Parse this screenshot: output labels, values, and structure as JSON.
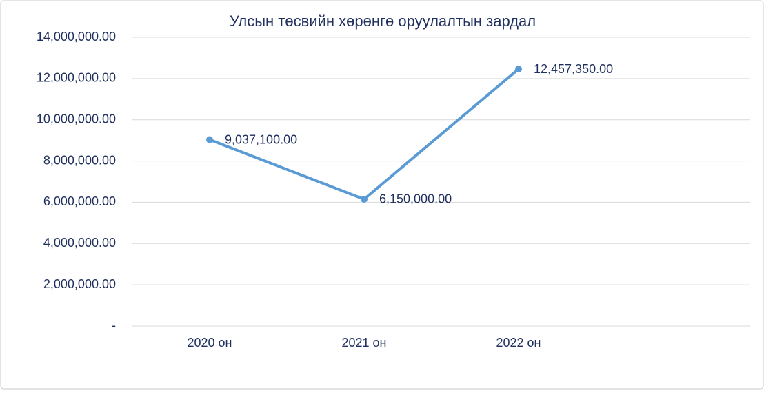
{
  "chart_data": {
    "type": "line",
    "title": "Улсын төсвийн хөрөнгө оруулалтын зардал",
    "categories": [
      "2020 он",
      "2021 он",
      "2022 он",
      null
    ],
    "series": [
      {
        "color": "#5b9bd5",
        "values": [
          9037100,
          6150000,
          12457350,
          null
        ],
        "value_labels": [
          "9,037,100.00",
          "6,150,000.00",
          "12,457,350.00",
          null
        ]
      }
    ],
    "ylim": [
      0,
      14000000
    ],
    "yticks": [
      {
        "value": 0,
        "label": "-"
      },
      {
        "value": 2000000,
        "label": "2,000,000.00"
      },
      {
        "value": 4000000,
        "label": "4,000,000.00"
      },
      {
        "value": 6000000,
        "label": "6,000,000.00"
      },
      {
        "value": 8000000,
        "label": "8,000,000.00"
      },
      {
        "value": 10000000,
        "label": "10,000,000.00"
      },
      {
        "value": 12000000,
        "label": "12,000,000.00"
      },
      {
        "value": 14000000,
        "label": "14,000,000.00"
      }
    ],
    "grid": true
  }
}
